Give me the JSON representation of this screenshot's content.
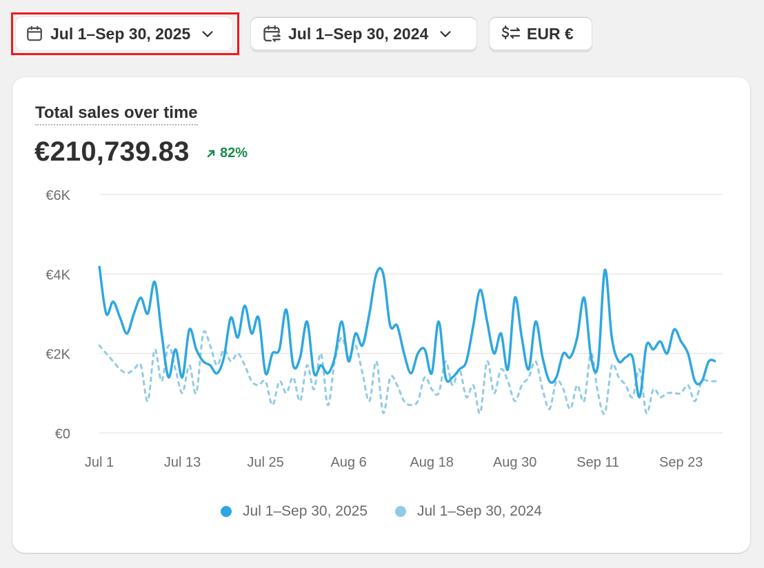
{
  "toolbar": {
    "date_range": "Jul 1–Sep 30, 2025",
    "compare_range": "Jul 1–Sep 30, 2024",
    "currency": "EUR €"
  },
  "card": {
    "title": "Total sales over time",
    "total": "€210,739.83",
    "change": "82%"
  },
  "colors": {
    "current": "#2ea7e0",
    "previous": "#8fcbe6",
    "positive": "#1a8a4a"
  },
  "icons": {
    "date_range": "calendar-icon",
    "compare_range": "calendar-compare-icon",
    "currency": "currency-exchange-icon",
    "chevron": "chevron-down-icon",
    "change": "arrow-up-right-icon"
  },
  "chart_data": {
    "type": "line",
    "title": "Total sales over time",
    "y_ticks": [
      "€6K",
      "€4K",
      "€2K",
      "€0"
    ],
    "ylim": [
      0,
      6000
    ],
    "x_tick_labels": [
      "Jul 1",
      "Jul 13",
      "Jul 25",
      "Aug 6",
      "Aug 18",
      "Aug 30",
      "Sep 11",
      "Sep 23"
    ],
    "x_tick_days": [
      0,
      12,
      24,
      36,
      48,
      60,
      72,
      84
    ],
    "grid": true,
    "legend_position": "bottom",
    "series": [
      {
        "name": "Jul 1–Sep 30, 2025",
        "style": "solid",
        "values": [
          4200,
          3000,
          3300,
          2900,
          2500,
          3000,
          3400,
          3000,
          3800,
          2500,
          1400,
          2100,
          1400,
          2600,
          2100,
          1800,
          1700,
          1500,
          1900,
          2900,
          2400,
          3200,
          2500,
          2900,
          1500,
          2000,
          2100,
          3100,
          1700,
          1900,
          2800,
          1500,
          1700,
          1500,
          1900,
          2800,
          1800,
          2500,
          2200,
          3000,
          4000,
          4000,
          2700,
          2700,
          2000,
          1500,
          2000,
          2100,
          1500,
          2800,
          1400,
          1400,
          1600,
          1800,
          2700,
          3600,
          2800,
          2000,
          2500,
          1600,
          3400,
          2400,
          1600,
          2800,
          1900,
          1300,
          1400,
          2000,
          1900,
          2400,
          3400,
          1900,
          1700,
          4100,
          2400,
          1800,
          1900,
          1900,
          900,
          2200,
          2100,
          2300,
          2000,
          2600,
          2300,
          2000,
          1300,
          1300,
          1800,
          1800
        ]
      },
      {
        "name": "Jul 1–Sep 30, 2024",
        "style": "dashed",
        "values": [
          2200,
          2000,
          1800,
          1600,
          1500,
          1600,
          1700,
          800,
          2100,
          1300,
          2200,
          1600,
          1000,
          1700,
          1000,
          2500,
          2200,
          1700,
          2100,
          1800,
          2000,
          1700,
          1300,
          1200,
          1300,
          700,
          1300,
          1000,
          1400,
          800,
          1700,
          1100,
          2000,
          700,
          1800,
          2400,
          1900,
          2200,
          1500,
          800,
          1800,
          500,
          1400,
          1200,
          800,
          700,
          800,
          1400,
          1100,
          1000,
          1800,
          1200,
          1600,
          900,
          1200,
          500,
          1800,
          1000,
          1600,
          1300,
          800,
          1200,
          1400,
          1800,
          1100,
          600,
          1300,
          1100,
          600,
          1200,
          800,
          2000,
          1000,
          500,
          1700,
          1400,
          1200,
          900,
          1600,
          500,
          1100,
          900,
          1000,
          1000,
          1000,
          1200,
          800,
          1300,
          1300,
          1300
        ]
      }
    ]
  },
  "legend": [
    {
      "label": "Jul 1–Sep 30, 2025"
    },
    {
      "label": "Jul 1–Sep 30, 2024"
    }
  ]
}
